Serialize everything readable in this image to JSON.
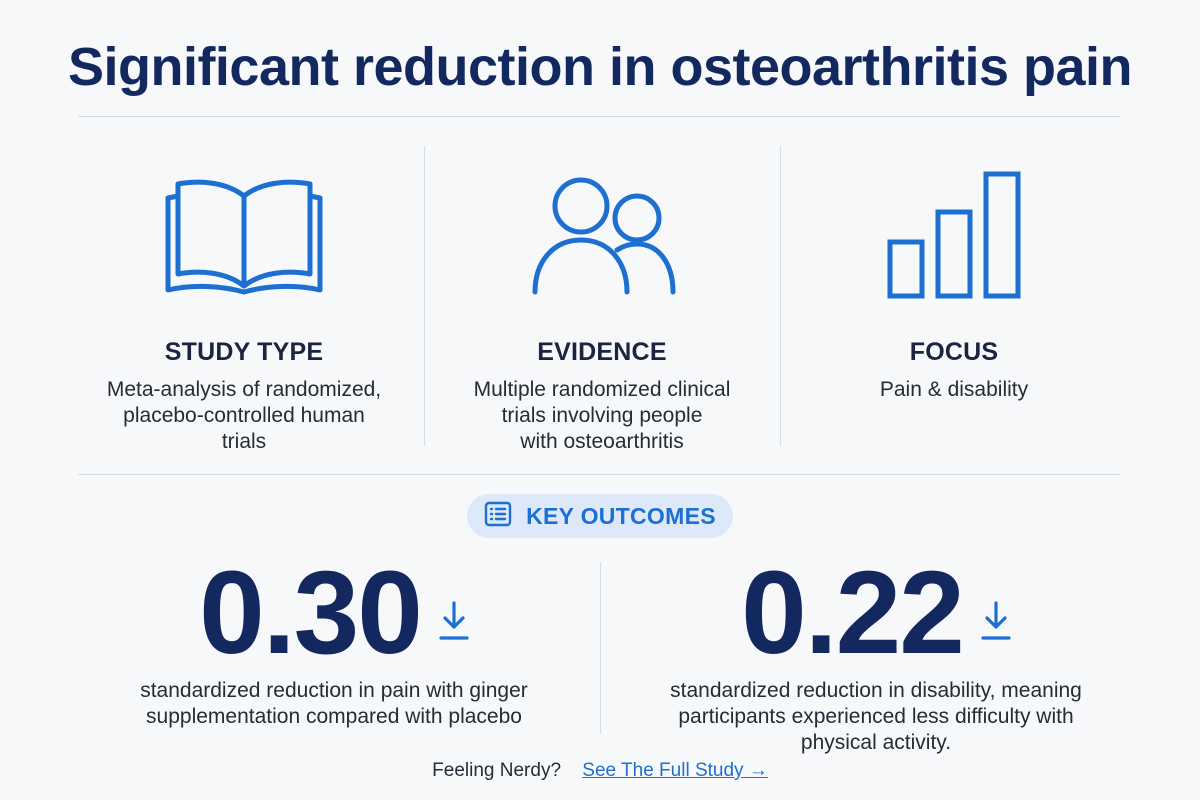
{
  "title": "Significant reduction in osteoarthritis pain",
  "columns": [
    {
      "icon": "open-book-icon",
      "label": "STUDY TYPE",
      "lines": [
        "Meta-analysis of randomized,",
        "placebo-controlled human",
        "trials"
      ]
    },
    {
      "icon": "people-icon",
      "label": "EVIDENCE",
      "lines": [
        "Multiple randomized clinical",
        "trials involving people",
        "with osteoarthritis"
      ]
    },
    {
      "icon": "bar-chart-icon",
      "label": "FOCUS",
      "lines": [
        "Pain & disability"
      ]
    }
  ],
  "badge": {
    "icon": "list-icon",
    "label": "KEY OUTCOMES"
  },
  "stats": [
    {
      "value": "0.30",
      "icon": "arrow-down-icon",
      "lines": [
        "standardized reduction in pain with ginger",
        "supplementation compared with placebo"
      ]
    },
    {
      "value": "0.22",
      "icon": "arrow-down-icon",
      "lines": [
        "standardized reduction in disability, meaning",
        "participants experienced less difficulty with",
        "physical activity."
      ]
    }
  ],
  "footer": {
    "prompt": "Feeling Nerdy?",
    "link": "See The Full Study →"
  },
  "colors": {
    "navy": "#13285e",
    "blue": "#1d6fd1",
    "badge_bg": "#dde9f8"
  }
}
